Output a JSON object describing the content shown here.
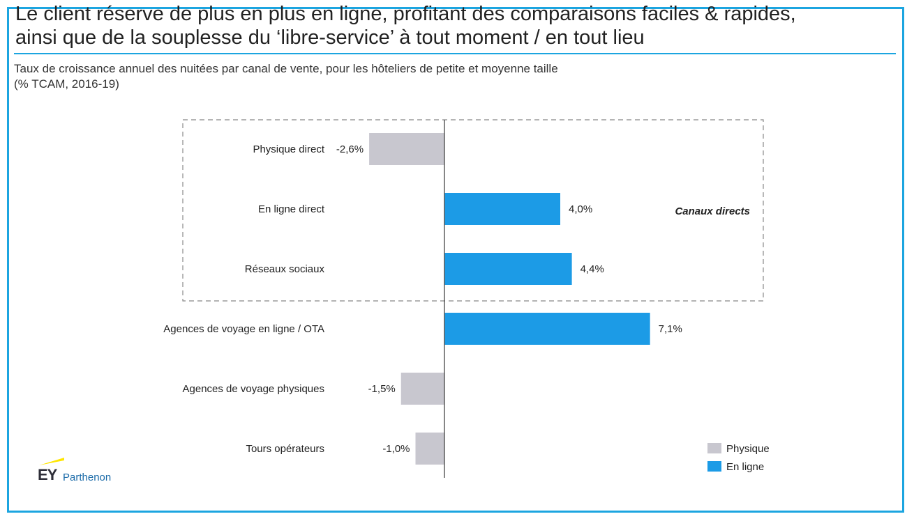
{
  "header": {
    "title_line1": "Le client réserve de plus en plus en ligne, profitant des comparaisons faciles & rapides,",
    "title_line2": "ainsi que de la souplesse du ‘libre-service’ à tout moment / en tout lieu",
    "subtitle_line1": "Taux de croissance annuel des nuitées par canal de vente, pour les hôteliers de petite et moyenne taille",
    "subtitle_line2": "(% TCAM, 2016-19)"
  },
  "logo": {
    "brand": "EY",
    "sub": "Parthenon"
  },
  "colors": {
    "physique": "#c8c7cf",
    "en_ligne": "#1c9be6",
    "frame": "#1ca5e0"
  },
  "chart_data": {
    "type": "bar",
    "orientation": "horizontal",
    "categories": [
      "Physique direct",
      "En ligne direct",
      "Réseaux sociaux",
      "Agences de voyage en ligne / OTA",
      "Agences de voyage physiques",
      "Tours opérateurs"
    ],
    "values": [
      -2.6,
      4.0,
      4.4,
      7.1,
      -1.5,
      -1.0
    ],
    "value_labels": [
      "-2,6%",
      "4,0%",
      "4,4%",
      "7,1%",
      "-1,5%",
      "-1,0%"
    ],
    "series_type": [
      "Physique",
      "En ligne",
      "En ligne",
      "En ligne",
      "Physique",
      "Physique"
    ],
    "legend": [
      {
        "name": "Physique",
        "color": "#c8c7cf"
      },
      {
        "name": "En ligne",
        "color": "#1c9be6"
      }
    ],
    "legend_position": "bottom-right",
    "group_annotation": {
      "label": "Canaux directs",
      "categories": [
        0,
        1,
        2
      ]
    },
    "xlim": [
      -2.6,
      7.1
    ],
    "grid": false
  }
}
